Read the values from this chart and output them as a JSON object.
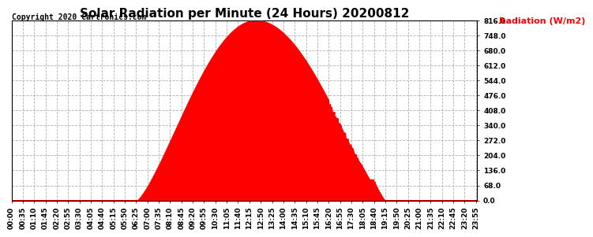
{
  "title": "Solar Radiation per Minute (24 Hours) 20200812",
  "copyright_text": "Copyright 2020 Cartronics.com",
  "ylabel": "Radiation (W/m2)",
  "ylabel_color": "red",
  "copyright_color": "black",
  "fill_color": "red",
  "line_color": "red",
  "background_color": "#ffffff",
  "grid_color": "#b0b0b0",
  "dashed_line_color": "red",
  "ylim": [
    0.0,
    816.0
  ],
  "yticks": [
    0.0,
    68.0,
    136.0,
    204.0,
    272.0,
    340.0,
    408.0,
    476.0,
    544.0,
    612.0,
    680.0,
    748.0,
    816.0
  ],
  "total_minutes": 1440,
  "peak_minute": 755,
  "peak_value": 816.0,
  "sunrise_minute": 388,
  "sunset_minute": 1155,
  "title_fontsize": 11,
  "label_fontsize": 8,
  "tick_fontsize": 6.5,
  "x_label_interval": 35,
  "copyright_fontsize": 7
}
